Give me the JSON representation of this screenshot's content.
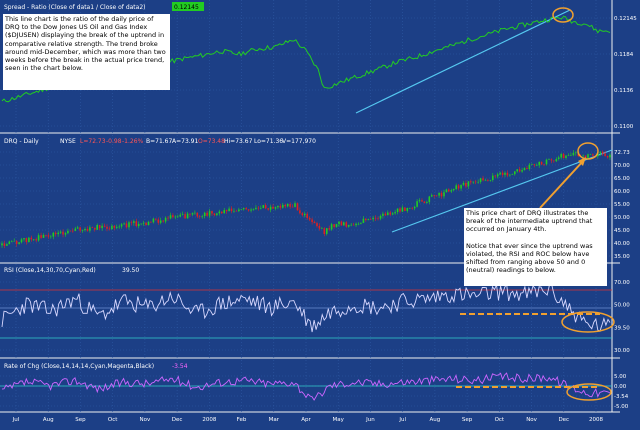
{
  "colors": {
    "background": "#1c3f86",
    "panel_divider": "#f0f0f0",
    "grid": "#2f5aa5",
    "ratio_line": "#22cc22",
    "trendline": "#55c8f0",
    "candle_up": "#22cc22",
    "candle_down": "#e02020",
    "rsi_line": "#d8d8ff",
    "roc_line": "#cc66ff",
    "guide_cyan": "#33cccc",
    "guide_red": "#dd3333",
    "highlight_orange": "#f0a030",
    "callout_bg": "#ffffff",
    "callout_text": "#000000"
  },
  "panels": {
    "ratio": {
      "title": "Spread - Ratio (Close of data1 / Close of data2)",
      "last_value": "0.12145",
      "axis_labels": [
        "0.12145",
        "0.1184",
        "0.1136",
        "0.1100"
      ]
    },
    "price": {
      "symbol": "DRQ - Daily",
      "exchange": "NYSE",
      "quote_last": "L=72.73",
      "quote_change": "-0.98",
      "quote_pct": "-1.26%",
      "quote_bid": "B=71.67",
      "quote_ask": "A=73.91",
      "quote_open": "O=73.48",
      "quote_high": "Hi=73.67",
      "quote_low": "Lo=71.36",
      "quote_volume": "V=177,970",
      "axis_labels": [
        "72.73",
        "70.00",
        "65.00",
        "60.00",
        "55.00",
        "50.00",
        "45.00",
        "40.00",
        "35.00"
      ]
    },
    "rsi": {
      "title": "RSI (Close,14,30,70,Cyan,Red)",
      "last_value": "39.50",
      "axis_labels": [
        "70.00",
        "50.00",
        "39.50",
        "30.00"
      ]
    },
    "roc": {
      "title": "Rate of Chg (Close,14,14,14,Cyan,Magenta,Black)",
      "last_value": "-3.54",
      "axis_labels": [
        "5.00",
        "0.00",
        "-3.54",
        "-5.00"
      ]
    }
  },
  "x_axis_labels": [
    "Jul",
    "Aug",
    "Sep",
    "Oct",
    "Nov",
    "Dec",
    "2008",
    "Feb",
    "Mar",
    "Apr",
    "May",
    "Jun",
    "Jul",
    "Aug",
    "Sep",
    "Oct",
    "Nov",
    "Dec",
    "2008"
  ],
  "callouts": {
    "ratio_note": "This line chart is the ratio of the daily price of DRQ to the Dow Jones US Oil and Gas Index ($DJUSEN) displaying the break of the uptrend in comparative relative strength. The trend broke around mid-December, which was more than two weeks before the break in the actual price trend, seen in the chart below.",
    "price_note_1": "This price chart of DRQ illustrates the break of the intermediate uptrend that occurred on January 4th.",
    "price_note_2": "Notice that ever since the uptrend was violated, the RSI and ROC below have shifted from ranging above 50 and 0 (neutral) readings to below."
  },
  "chart_data": [
    {
      "type": "line",
      "panel": "ratio",
      "title": "Spread - Ratio (Close of data1 / Close of data2)",
      "x": [
        0.0,
        0.03,
        0.06,
        0.09,
        0.12,
        0.15,
        0.18,
        0.21,
        0.24,
        0.27,
        0.3,
        0.33,
        0.36,
        0.39,
        0.42,
        0.45,
        0.48,
        0.5,
        0.52,
        0.53,
        0.56,
        0.59,
        0.62,
        0.65,
        0.68,
        0.71,
        0.74,
        0.77,
        0.8,
        0.83,
        0.86,
        0.89,
        0.92,
        0.94,
        0.96,
        0.98,
        1.0
      ],
      "y": [
        0.108,
        0.109,
        0.11,
        0.1112,
        0.112,
        0.1118,
        0.1132,
        0.114,
        0.1148,
        0.1154,
        0.1162,
        0.1168,
        0.1176,
        0.117,
        0.118,
        0.1184,
        0.1198,
        0.1176,
        0.114,
        0.1105,
        0.1118,
        0.113,
        0.1142,
        0.1155,
        0.1164,
        0.1176,
        0.1186,
        0.1198,
        0.1208,
        0.1218,
        0.1226,
        0.1234,
        0.124,
        0.1232,
        0.1228,
        0.1214,
        0.12145
      ],
      "ylim": [
        0.103,
        0.125
      ]
    },
    {
      "type": "line",
      "panel": "price",
      "label": "DRQ - Daily",
      "x": [
        0.0,
        0.04,
        0.08,
        0.12,
        0.16,
        0.2,
        0.24,
        0.28,
        0.32,
        0.36,
        0.4,
        0.44,
        0.48,
        0.5,
        0.53,
        0.55,
        0.57,
        0.6,
        0.63,
        0.66,
        0.69,
        0.72,
        0.75,
        0.78,
        0.81,
        0.84,
        0.87,
        0.9,
        0.92,
        0.94,
        0.96,
        0.98,
        1.0
      ],
      "y": [
        38,
        40,
        42,
        44,
        45,
        46,
        47,
        49,
        50,
        51,
        52,
        53,
        54,
        49,
        43,
        47,
        46,
        48,
        50,
        52,
        55,
        58,
        61,
        63,
        65,
        67,
        69,
        71,
        73,
        74,
        73,
        74,
        72.73
      ],
      "ylim": [
        33,
        77
      ]
    },
    {
      "type": "line",
      "panel": "rsi",
      "title": "RSI (Close,14,30,70,Cyan,Red)",
      "x": [
        0.0,
        0.04,
        0.08,
        0.12,
        0.16,
        0.2,
        0.24,
        0.28,
        0.32,
        0.36,
        0.4,
        0.44,
        0.48,
        0.51,
        0.54,
        0.58,
        0.62,
        0.66,
        0.7,
        0.74,
        0.78,
        0.82,
        0.86,
        0.9,
        0.93,
        0.96,
        1.0
      ],
      "y": [
        45,
        58,
        52,
        62,
        48,
        60,
        55,
        64,
        50,
        58,
        62,
        55,
        60,
        40,
        52,
        58,
        55,
        60,
        62,
        66,
        64,
        68,
        65,
        70,
        56,
        42,
        39.5
      ],
      "ylim": [
        20,
        80
      ]
    },
    {
      "type": "line",
      "panel": "roc",
      "title": "Rate of Chg (Close,14,14,14,Cyan,Magenta,Black)",
      "x": [
        0.0,
        0.04,
        0.08,
        0.12,
        0.16,
        0.2,
        0.24,
        0.28,
        0.32,
        0.36,
        0.4,
        0.44,
        0.48,
        0.51,
        0.54,
        0.58,
        0.62,
        0.66,
        0.7,
        0.74,
        0.78,
        0.82,
        0.86,
        0.9,
        0.93,
        0.96,
        1.0
      ],
      "y": [
        -2,
        3,
        1,
        4,
        -1,
        3,
        2,
        5,
        0,
        3,
        4,
        2,
        3,
        -8,
        1,
        3,
        2,
        3,
        4,
        5,
        4,
        6,
        5,
        6,
        1,
        -3,
        -3.54
      ],
      "ylim": [
        -12,
        10
      ]
    }
  ]
}
